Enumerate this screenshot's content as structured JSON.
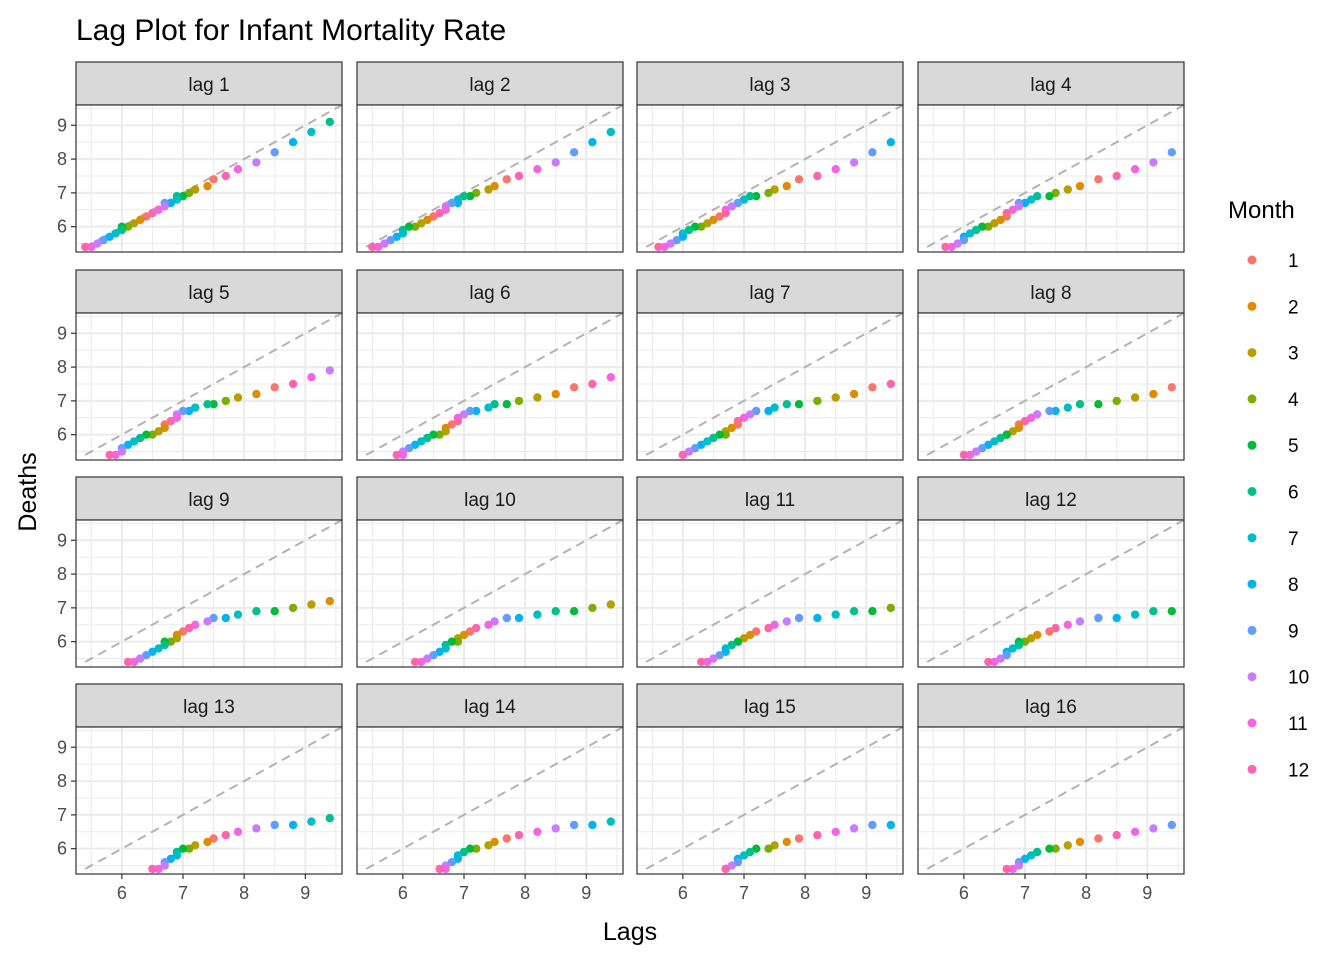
{
  "chart_data": {
    "type": "scatter",
    "title": "Lag Plot for Infant Mortality Rate",
    "xlabel": "Lags",
    "ylabel": "Deaths",
    "xlim": [
      5.25,
      9.6
    ],
    "ylim": [
      5.25,
      9.6
    ],
    "x_ticks": [
      6,
      7,
      8,
      9
    ],
    "y_ticks": [
      6,
      7,
      8,
      9
    ],
    "reference_line": "dashed y = x",
    "grid": true,
    "legend": {
      "title": "Month",
      "position": "right",
      "entries": [
        {
          "label": "1",
          "color": "#F8766D"
        },
        {
          "label": "2",
          "color": "#DE8C00"
        },
        {
          "label": "3",
          "color": "#B79F00"
        },
        {
          "label": "4",
          "color": "#7CAE00"
        },
        {
          "label": "5",
          "color": "#00BA38"
        },
        {
          "label": "6",
          "color": "#00C08B"
        },
        {
          "label": "7",
          "color": "#00BFC4"
        },
        {
          "label": "8",
          "color": "#00B4F0"
        },
        {
          "label": "9",
          "color": "#619CFF"
        },
        {
          "label": "10",
          "color": "#C77CFF"
        },
        {
          "label": "11",
          "color": "#F564E3"
        },
        {
          "label": "12",
          "color": "#FF64B0"
        }
      ]
    },
    "series_values": [
      9.4,
      9.1,
      8.8,
      8.5,
      8.2,
      7.9,
      7.7,
      7.5,
      7.4,
      7.2,
      7.1,
      7.0,
      6.9,
      6.9,
      6.8,
      6.7,
      6.7,
      6.6,
      6.5,
      6.4,
      6.3,
      6.2,
      6.1,
      6.0,
      6.0,
      5.9,
      5.8,
      5.7,
      5.6,
      5.5,
      5.4,
      5.4
    ],
    "series_months": [
      5,
      6,
      7,
      8,
      9,
      10,
      11,
      12,
      1,
      2,
      3,
      4,
      5,
      6,
      7,
      8,
      9,
      10,
      11,
      12,
      1,
      2,
      3,
      4,
      5,
      6,
      7,
      8,
      9,
      10,
      11,
      12
    ],
    "panels": [
      {
        "label": "lag 1"
      },
      {
        "label": "lag 2"
      },
      {
        "label": "lag 3"
      },
      {
        "label": "lag 4"
      },
      {
        "label": "lag 5"
      },
      {
        "label": "lag 6"
      },
      {
        "label": "lag 7"
      },
      {
        "label": "lag 8"
      },
      {
        "label": "lag 9"
      },
      {
        "label": "lag 10"
      },
      {
        "label": "lag 11"
      },
      {
        "label": "lag 12"
      },
      {
        "label": "lag 13"
      },
      {
        "label": "lag 14"
      },
      {
        "label": "lag 15"
      },
      {
        "label": "lag 16"
      }
    ]
  }
}
